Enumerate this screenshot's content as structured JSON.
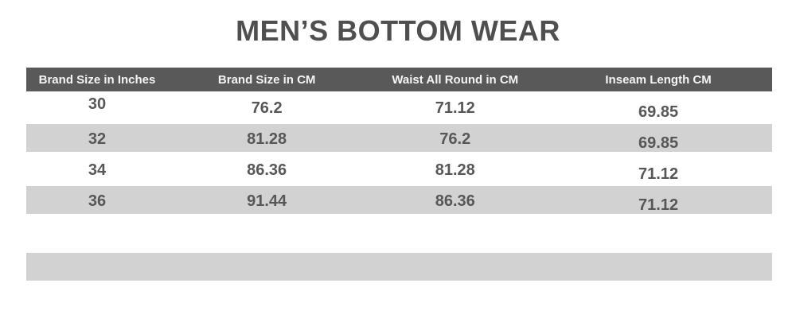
{
  "title": "MEN’S BOTTOM WEAR",
  "colors": {
    "header_bg": "#595959",
    "header_text": "#f5f5f5",
    "alt_row_bg": "#d2d2d2",
    "title_text": "#4f4f4f",
    "cell_text": "#575757",
    "background": "#ffffff"
  },
  "chart_data": {
    "type": "table",
    "title": "MEN’S BOTTOM WEAR",
    "columns": [
      "Brand Size in Inches",
      "Brand Size in CM",
      "Waist All Round in CM",
      "Inseam Length CM"
    ],
    "rows": [
      [
        "30",
        "76.2",
        "71.12",
        "69.85"
      ],
      [
        "32",
        "81.28",
        "76.2",
        "69.85"
      ],
      [
        "34",
        "86.36",
        "81.28",
        "71.12"
      ],
      [
        "36",
        "91.44",
        "86.36",
        "71.12"
      ]
    ],
    "empty_trailing_rows": 2,
    "layout": "header row dark gray with white text; data rows alternate white and light gray; one empty light-gray row near the bottom"
  }
}
